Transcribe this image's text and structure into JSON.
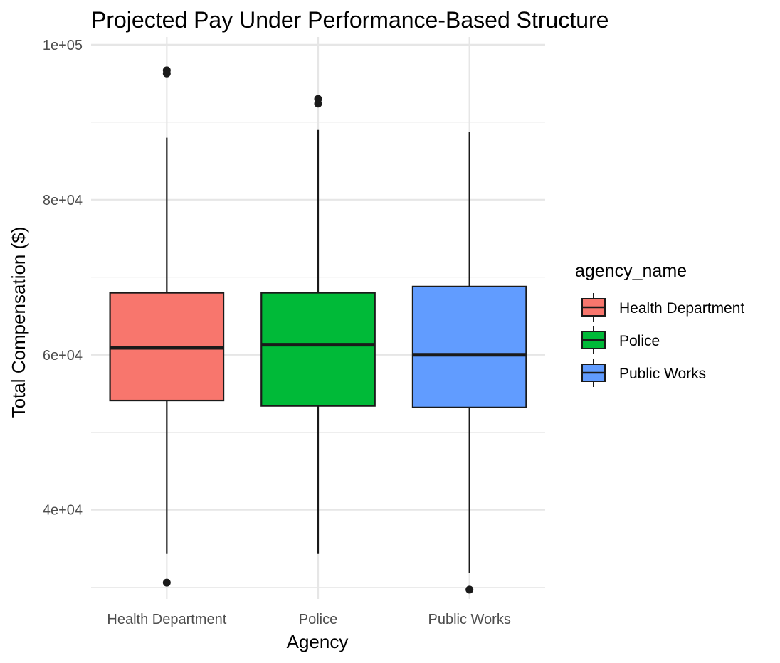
{
  "chart_data": {
    "type": "boxplot",
    "title": "Projected Pay Under Performance-Based Structure",
    "xlabel": "Agency",
    "ylabel": "Total Compensation ($)",
    "categories": [
      "Health Department",
      "Police",
      "Public Works"
    ],
    "ylim": [
      28500,
      101000
    ],
    "y_ticks": [
      {
        "value": 40000,
        "label": "4e+04"
      },
      {
        "value": 60000,
        "label": "6e+04"
      },
      {
        "value": 80000,
        "label": "8e+04"
      },
      {
        "value": 100000,
        "label": "1e+05"
      }
    ],
    "y_minor_ticks": [
      30000,
      50000,
      70000,
      90000
    ],
    "boxes": [
      {
        "category": "Health Department",
        "whisker_low": 34300,
        "q1": 54100,
        "median": 60900,
        "q3": 68000,
        "whisker_high": 88000,
        "outliers": [
          30600,
          96300,
          96700
        ],
        "color": "#F8766D"
      },
      {
        "category": "Police",
        "whisker_low": 34300,
        "q1": 53400,
        "median": 61300,
        "q3": 68000,
        "whisker_high": 89000,
        "outliers": [
          92400,
          93000
        ],
        "color": "#00BA38"
      },
      {
        "category": "Public Works",
        "whisker_low": 31800,
        "q1": 53200,
        "median": 60000,
        "q3": 68800,
        "whisker_high": 88700,
        "outliers": [
          29700
        ],
        "color": "#619CFF"
      }
    ],
    "legend": {
      "title": "agency_name",
      "position": "right",
      "entries": [
        "Health Department",
        "Police",
        "Public Works"
      ]
    },
    "grid": true
  }
}
